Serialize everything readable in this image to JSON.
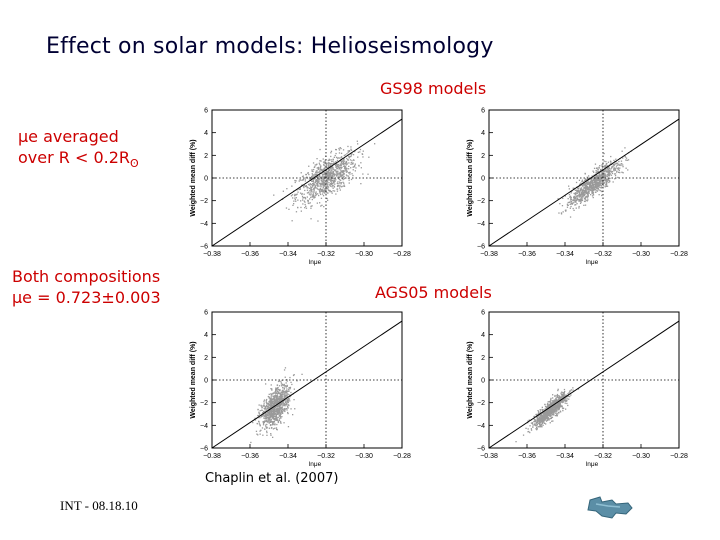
{
  "slide": {
    "title": "Effect on solar models: Helioseismology",
    "gs98_label": "GS98 models",
    "ags05_label": "AGS05 models",
    "note_avg_line1": "μe averaged",
    "note_avg_line2": "over R < 0.2R",
    "note_avg_sun": "ʘ",
    "note_both_line1": "Both compositions",
    "note_both_line2": "μe = 0.723±0.003",
    "citation": "Chaplin et al. (2007)",
    "footer": "INT - 08.18.10"
  },
  "colors": {
    "title": "#000033",
    "accent_red": "#cc0000",
    "points": "#9a9a9a",
    "fit_line": "#000000",
    "logo": "#5b8ea6"
  },
  "icons": {
    "logo": "institute-logo-icon"
  },
  "chart_data": [
    {
      "type": "scatter",
      "panel": "GS98 left",
      "x_center": -0.32,
      "y_center": 0.1,
      "sx": 0.008,
      "sy": 0.7,
      "corr": 0.65,
      "line": {
        "x": [
          -0.38,
          -0.28
        ],
        "y": [
          -6.0,
          5.2
        ]
      },
      "ref_x": -0.32,
      "ref_y": 0,
      "xlabel": "lnμe",
      "ylabel": "Weighted mean diff (%)",
      "xlim": [
        -0.38,
        -0.28
      ],
      "ylim": [
        -6,
        6
      ],
      "xticks": [
        "−0.38",
        "−0.36",
        "−0.34",
        "−0.32",
        "−0.30",
        "−0.28"
      ],
      "yticks": [
        "−6",
        "−4",
        "−2",
        "0",
        "2",
        "4",
        "6"
      ]
    },
    {
      "type": "scatter",
      "panel": "GS98 right",
      "x_center": -0.325,
      "y_center": -0.4,
      "sx": 0.0065,
      "sy": 0.6,
      "corr": 0.85,
      "line": {
        "x": [
          -0.38,
          -0.28
        ],
        "y": [
          -6.0,
          5.2
        ]
      },
      "ref_x": -0.32,
      "ref_y": 0,
      "xlabel": "lnμe",
      "ylabel": "Weighted mean diff (%)",
      "xlim": [
        -0.38,
        -0.28
      ],
      "ylim": [
        -6,
        6
      ],
      "xticks": [
        "−0.38",
        "−0.36",
        "−0.34",
        "−0.32",
        "−0.30",
        "−0.28"
      ],
      "yticks": [
        "−6",
        "−4",
        "−2",
        "0",
        "2",
        "4",
        "6"
      ]
    },
    {
      "type": "scatter",
      "panel": "AGS05 left",
      "x_center": -0.347,
      "y_center": -2.3,
      "sx": 0.004,
      "sy": 0.6,
      "corr": 0.55,
      "line": {
        "x": [
          -0.38,
          -0.28
        ],
        "y": [
          -6.0,
          5.2
        ]
      },
      "ref_x": -0.32,
      "ref_y": 0,
      "xlabel": "lnμe",
      "ylabel": "Weighted mean diff (%)",
      "xlim": [
        -0.38,
        -0.28
      ],
      "ylim": [
        -6,
        6
      ],
      "xticks": [
        "−0.38",
        "−0.36",
        "−0.34",
        "−0.32",
        "−0.30",
        "−0.28"
      ],
      "yticks": [
        "−6",
        "−4",
        "−2",
        "0",
        "2",
        "4",
        "6"
      ]
    },
    {
      "type": "scatter",
      "panel": "AGS05 right",
      "x_center": -0.348,
      "y_center": -2.6,
      "sx": 0.0045,
      "sy": 0.45,
      "corr": 0.85,
      "line": {
        "x": [
          -0.38,
          -0.28
        ],
        "y": [
          -6.0,
          5.2
        ]
      },
      "ref_x": -0.32,
      "ref_y": 0,
      "xlabel": "lnμe",
      "ylabel": "Weighted mean diff (%)",
      "xlim": [
        -0.38,
        -0.28
      ],
      "ylim": [
        -6,
        6
      ],
      "xticks": [
        "−0.38",
        "−0.36",
        "−0.34",
        "−0.32",
        "−0.30",
        "−0.28"
      ],
      "yticks": [
        "−6",
        "−4",
        "−2",
        "0",
        "2",
        "4",
        "6"
      ]
    }
  ]
}
